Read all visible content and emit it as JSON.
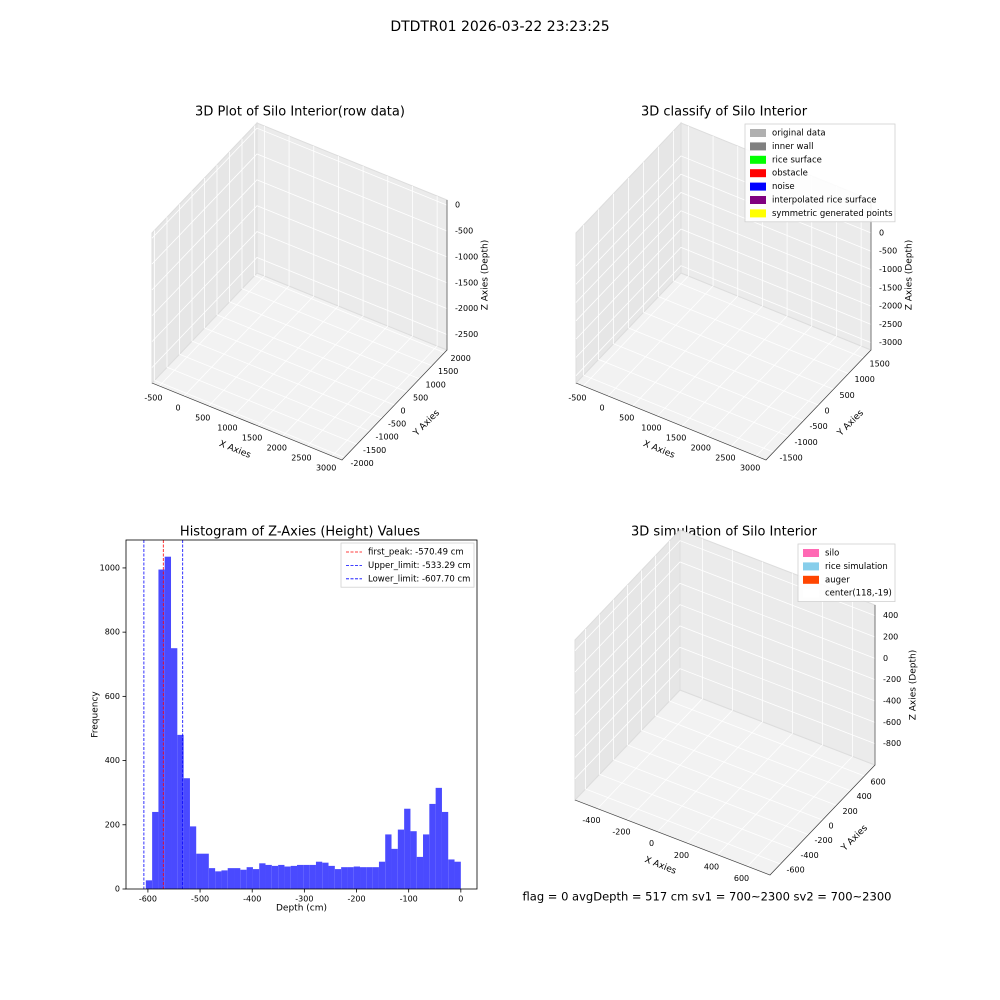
{
  "suptitle": "DTDTR01 2026-03-22 23:23:25",
  "status": "flag = 0     avgDepth = 517 cm  sv1 = 700~2300  sv2 = 700~2300",
  "chart_data": [
    {
      "type": "scatter3d",
      "title": "3D Plot of Silo Interior(row data)",
      "xlabel": "X Axies",
      "ylabel": "Y Axies",
      "zlabel": "Z Axies (Depth)",
      "xlim": [
        -650,
        3200
      ],
      "ylim": [
        -2100,
        2100
      ],
      "zlim": [
        -2800,
        100
      ],
      "xticks": [
        -500,
        0,
        500,
        1000,
        1500,
        2000,
        2500,
        3000
      ],
      "yticks": [
        -2000,
        -1500,
        -1000,
        -500,
        0,
        500,
        1000,
        1500,
        2000
      ],
      "zticks": [
        -2500,
        -2000,
        -1500,
        -1000,
        -500,
        0
      ]
    },
    {
      "type": "scatter3d",
      "title": "3D classify of Silo Interior",
      "xlabel": "X Axies",
      "ylabel": "Y Axies",
      "zlabel": "Z Axies (Depth)",
      "xlim": [
        -650,
        3200
      ],
      "ylim": [
        -1750,
        1750
      ],
      "zlim": [
        -3200,
        900
      ],
      "xticks": [
        -500,
        0,
        500,
        1000,
        1500,
        2000,
        2500,
        3000
      ],
      "yticks": [
        -1500,
        -1000,
        -500,
        0,
        500,
        1000,
        1500
      ],
      "zticks": [
        -3000,
        -2500,
        -2000,
        -1500,
        -1000,
        -500,
        0
      ],
      "legend": [
        {
          "name": "original data",
          "color": "#b0b0b0"
        },
        {
          "name": "inner wall",
          "color": "#808080"
        },
        {
          "name": "rice surface",
          "color": "#00ff00"
        },
        {
          "name": "obstacle",
          "color": "#ff0000"
        },
        {
          "name": "noise",
          "color": "#0000ff"
        },
        {
          "name": "interpolated rice surface",
          "color": "#800080"
        },
        {
          "name": "symmetric generated points",
          "color": "#ffff00"
        }
      ]
    },
    {
      "type": "histogram",
      "title": "Histogram of Z-Axies (Height) Values",
      "xlabel": "Depth (cm)",
      "ylabel": "Frequency",
      "color": "#4a4aff",
      "bins": [
        -604.0,
        -591.9,
        -579.8,
        -567.8,
        -555.7,
        -543.6,
        -531.5,
        -519.4,
        -507.4,
        -495.3,
        -483.2,
        -471.1,
        -459.0,
        -447.0,
        -434.9,
        -422.8,
        -410.7,
        -398.6,
        -386.6,
        -374.5,
        -362.4,
        -350.3,
        -338.2,
        -326.2,
        -314.1,
        -302.0,
        -289.9,
        -277.8,
        -265.8,
        -253.7,
        -241.6,
        -229.5,
        -217.4,
        -205.4,
        -193.3,
        -181.2,
        -169.1,
        -157.0,
        -145.0,
        -132.9,
        -120.8,
        -108.7,
        -96.6,
        -84.6,
        -72.5,
        -60.4,
        -48.3,
        -36.2,
        -24.2,
        -12.1,
        0
      ],
      "values": [
        27,
        240,
        995,
        1035,
        750,
        480,
        345,
        195,
        110,
        110,
        65,
        55,
        58,
        65,
        65,
        60,
        68,
        62,
        80,
        75,
        72,
        75,
        70,
        72,
        75,
        75,
        75,
        85,
        82,
        72,
        62,
        68,
        68,
        70,
        68,
        68,
        68,
        85,
        170,
        125,
        185,
        250,
        180,
        100,
        170,
        265,
        315,
        240,
        92,
        85
      ],
      "xlim": [
        -642,
        31
      ],
      "ylim": [
        0,
        1087
      ],
      "xticks": [
        -600,
        -500,
        -400,
        -300,
        -200,
        -100,
        0
      ],
      "yticks": [
        0,
        200,
        400,
        600,
        800,
        1000
      ],
      "lines": [
        {
          "name": "first_peak: -570.49 cm",
          "value": -570.49,
          "color": "#ff0000"
        },
        {
          "name": "Upper_limit: -533.29 cm",
          "value": -533.29,
          "color": "#0000ff"
        },
        {
          "name": "Lower_limit: -607.70 cm",
          "value": -607.7,
          "color": "#0000ff"
        }
      ]
    },
    {
      "type": "surface3d",
      "title": "3D simulation of Silo Interior",
      "xlabel": "X Axies",
      "ylabel": "Y Axies",
      "zlabel": "Z Axies (Depth)",
      "xlim": [
        -550,
        750
      ],
      "ylim": [
        -750,
        750
      ],
      "zlim": [
        -1000,
        500
      ],
      "xticks": [
        -400,
        -200,
        0,
        200,
        400,
        600
      ],
      "yticks": [
        -600,
        -400,
        -200,
        0,
        200,
        400,
        600
      ],
      "zticks": [
        -800,
        -600,
        -400,
        -200,
        0,
        200,
        400
      ],
      "legend": [
        {
          "name": "silo",
          "color": "#ff69b4"
        },
        {
          "name": "rice simulation",
          "color": "#87ceeb"
        },
        {
          "name": "auger",
          "color": "#ff4500"
        },
        {
          "name": "center(118,-19)",
          "color": "#ffffff"
        }
      ]
    }
  ]
}
